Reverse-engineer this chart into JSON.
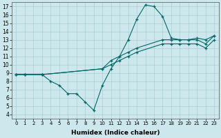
{
  "xlabel": "Humidex (Indice chaleur)",
  "xlim": [
    -0.5,
    23.5
  ],
  "ylim": [
    3.5,
    17.5
  ],
  "xticks": [
    0,
    1,
    2,
    3,
    4,
    5,
    6,
    7,
    8,
    9,
    10,
    11,
    12,
    13,
    14,
    15,
    16,
    17,
    18,
    19,
    20,
    21,
    22,
    23
  ],
  "yticks": [
    4,
    5,
    6,
    7,
    8,
    9,
    10,
    11,
    12,
    13,
    14,
    15,
    16,
    17
  ],
  "bg_color": "#cce8ec",
  "grid_color": "#aacdd4",
  "line_color": "#006666",
  "lines": [
    {
      "x": [
        0,
        1,
        3,
        4,
        5,
        6,
        7,
        8,
        9,
        10,
        11,
        12,
        13,
        14,
        15,
        16,
        17,
        18,
        19,
        20,
        21,
        22,
        23
      ],
      "y": [
        8.8,
        8.8,
        8.8,
        8.0,
        7.5,
        6.5,
        6.5,
        5.5,
        4.5,
        7.5,
        9.5,
        11.0,
        13.0,
        15.5,
        17.2,
        17.0,
        15.8,
        13.2,
        13.0,
        13.0,
        13.2,
        13.0,
        13.5
      ]
    },
    {
      "x": [
        0,
        1,
        3,
        10,
        11,
        12,
        13,
        14,
        17,
        18,
        19,
        20,
        21,
        22,
        23
      ],
      "y": [
        8.8,
        8.8,
        8.8,
        9.5,
        10.5,
        11.0,
        11.5,
        12.0,
        13.0,
        13.0,
        13.0,
        13.0,
        13.0,
        12.5,
        13.5
      ]
    },
    {
      "x": [
        0,
        1,
        3,
        10,
        11,
        12,
        13,
        14,
        17,
        18,
        19,
        20,
        21,
        22,
        23
      ],
      "y": [
        8.8,
        8.8,
        8.8,
        9.5,
        10.0,
        10.5,
        11.0,
        11.5,
        12.5,
        12.5,
        12.5,
        12.5,
        12.5,
        12.0,
        13.0
      ]
    }
  ]
}
